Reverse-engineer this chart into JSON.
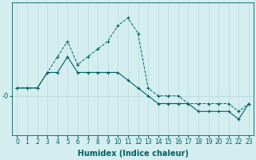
{
  "xlabel": "Humidex (Indice chaleur)",
  "background_color": "#d4eef0",
  "grid_color": "#b8d8dc",
  "line_color": "#006060",
  "x_ticks": [
    0,
    1,
    2,
    3,
    4,
    5,
    6,
    7,
    8,
    9,
    10,
    11,
    12,
    13,
    14,
    15,
    16,
    17,
    18,
    19,
    20,
    21,
    22,
    23
  ],
  "series1_x": [
    0,
    1,
    2,
    3,
    4,
    5,
    6,
    7,
    8,
    9,
    10,
    11,
    12,
    13,
    14,
    15,
    16,
    17,
    18,
    19,
    20,
    21,
    22,
    23
  ],
  "series1_y": [
    1,
    1,
    1,
    3,
    5,
    7,
    4,
    5,
    6,
    7,
    9,
    10,
    8,
    1,
    0,
    0,
    0,
    -1,
    -1,
    -1,
    -1,
    -1,
    -2,
    -1
  ],
  "series2_x": [
    0,
    1,
    2,
    3,
    4,
    5,
    6,
    7,
    8,
    9,
    10,
    11,
    12,
    13,
    14,
    15,
    16,
    17,
    18,
    19,
    20,
    21,
    22,
    23
  ],
  "series2_y": [
    1,
    1,
    1,
    3,
    3,
    5,
    3,
    3,
    3,
    3,
    3,
    2,
    1,
    0,
    -1,
    -1,
    -1,
    -1,
    -2,
    -2,
    -2,
    -2,
    -3,
    -1
  ],
  "ylim": [
    -5,
    12
  ],
  "ytick_val": 0,
  "ytick_label": "-0",
  "figsize": [
    3.2,
    2.0
  ],
  "dpi": 100,
  "tick_fontsize": 5.5,
  "xlabel_fontsize": 7
}
